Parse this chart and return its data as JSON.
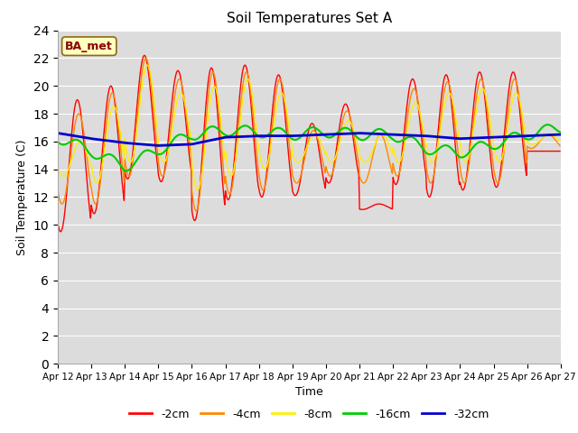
{
  "title": "Soil Temperatures Set A",
  "xlabel": "Time",
  "ylabel": "Soil Temperature (C)",
  "annotation": "BA_met",
  "ylim": [
    0,
    24
  ],
  "yticks": [
    0,
    2,
    4,
    6,
    8,
    10,
    12,
    14,
    16,
    18,
    20,
    22,
    24
  ],
  "xtick_labels": [
    "Apr 12",
    "Apr 13",
    "Apr 14",
    "Apr 15",
    "Apr 16",
    "Apr 17",
    "Apr 18",
    "Apr 19",
    "Apr 20",
    "Apr 21",
    "Apr 22",
    "Apr 23",
    "Apr 24",
    "Apr 25",
    "Apr 26",
    "Apr 27"
  ],
  "bg_color": "#dcdcdc",
  "fig_color": "#ffffff",
  "series_colors": [
    "#ff0000",
    "#ff8800",
    "#ffee00",
    "#00cc00",
    "#0000cc"
  ],
  "series_labels": [
    "-2cm",
    "-4cm",
    "-8cm",
    "-16cm",
    "-32cm"
  ],
  "series_linewidths": [
    1.0,
    1.0,
    1.0,
    1.5,
    2.0
  ],
  "n_days": 15,
  "points_per_day": 48,
  "day_peaks_2cm": [
    19.0,
    20.0,
    22.2,
    21.1,
    21.3,
    21.5,
    20.8,
    17.3,
    18.7,
    11.5,
    20.5,
    20.8,
    21.0,
    21.0,
    15.3
  ],
  "day_troughs_2cm": [
    9.5,
    10.8,
    13.3,
    13.1,
    10.3,
    11.8,
    12.0,
    12.1,
    13.0,
    11.1,
    12.9,
    12.0,
    12.5,
    12.7,
    15.3
  ],
  "day_peaks_4cm": [
    18.0,
    19.5,
    22.0,
    20.5,
    21.0,
    21.0,
    20.5,
    16.8,
    18.2,
    16.5,
    19.8,
    20.3,
    20.5,
    20.5,
    16.5
  ],
  "day_troughs_4cm": [
    11.5,
    11.5,
    13.5,
    13.5,
    11.0,
    12.2,
    12.5,
    13.0,
    13.5,
    13.0,
    13.5,
    13.0,
    13.0,
    13.0,
    15.5
  ],
  "day_peaks_8cm": [
    16.0,
    18.5,
    21.5,
    19.5,
    20.0,
    20.5,
    19.5,
    16.5,
    17.5,
    16.5,
    18.8,
    19.5,
    19.8,
    19.5,
    16.5
  ],
  "day_troughs_8cm": [
    13.5,
    13.0,
    14.5,
    14.5,
    12.5,
    13.5,
    14.0,
    14.5,
    14.5,
    14.5,
    14.5,
    14.5,
    14.5,
    14.5,
    15.8
  ],
  "blue_values": [
    16.6,
    16.2,
    15.9,
    15.7,
    15.8,
    16.3,
    16.4,
    16.4,
    16.5,
    16.6,
    16.5,
    16.4,
    16.2,
    16.3,
    16.4,
    16.5
  ],
  "green_values": [
    16.3,
    15.3,
    14.2,
    15.4,
    16.5,
    16.8,
    16.7,
    16.5,
    16.7,
    16.5,
    16.5,
    15.5,
    15.2,
    15.8,
    16.5,
    17.0
  ]
}
